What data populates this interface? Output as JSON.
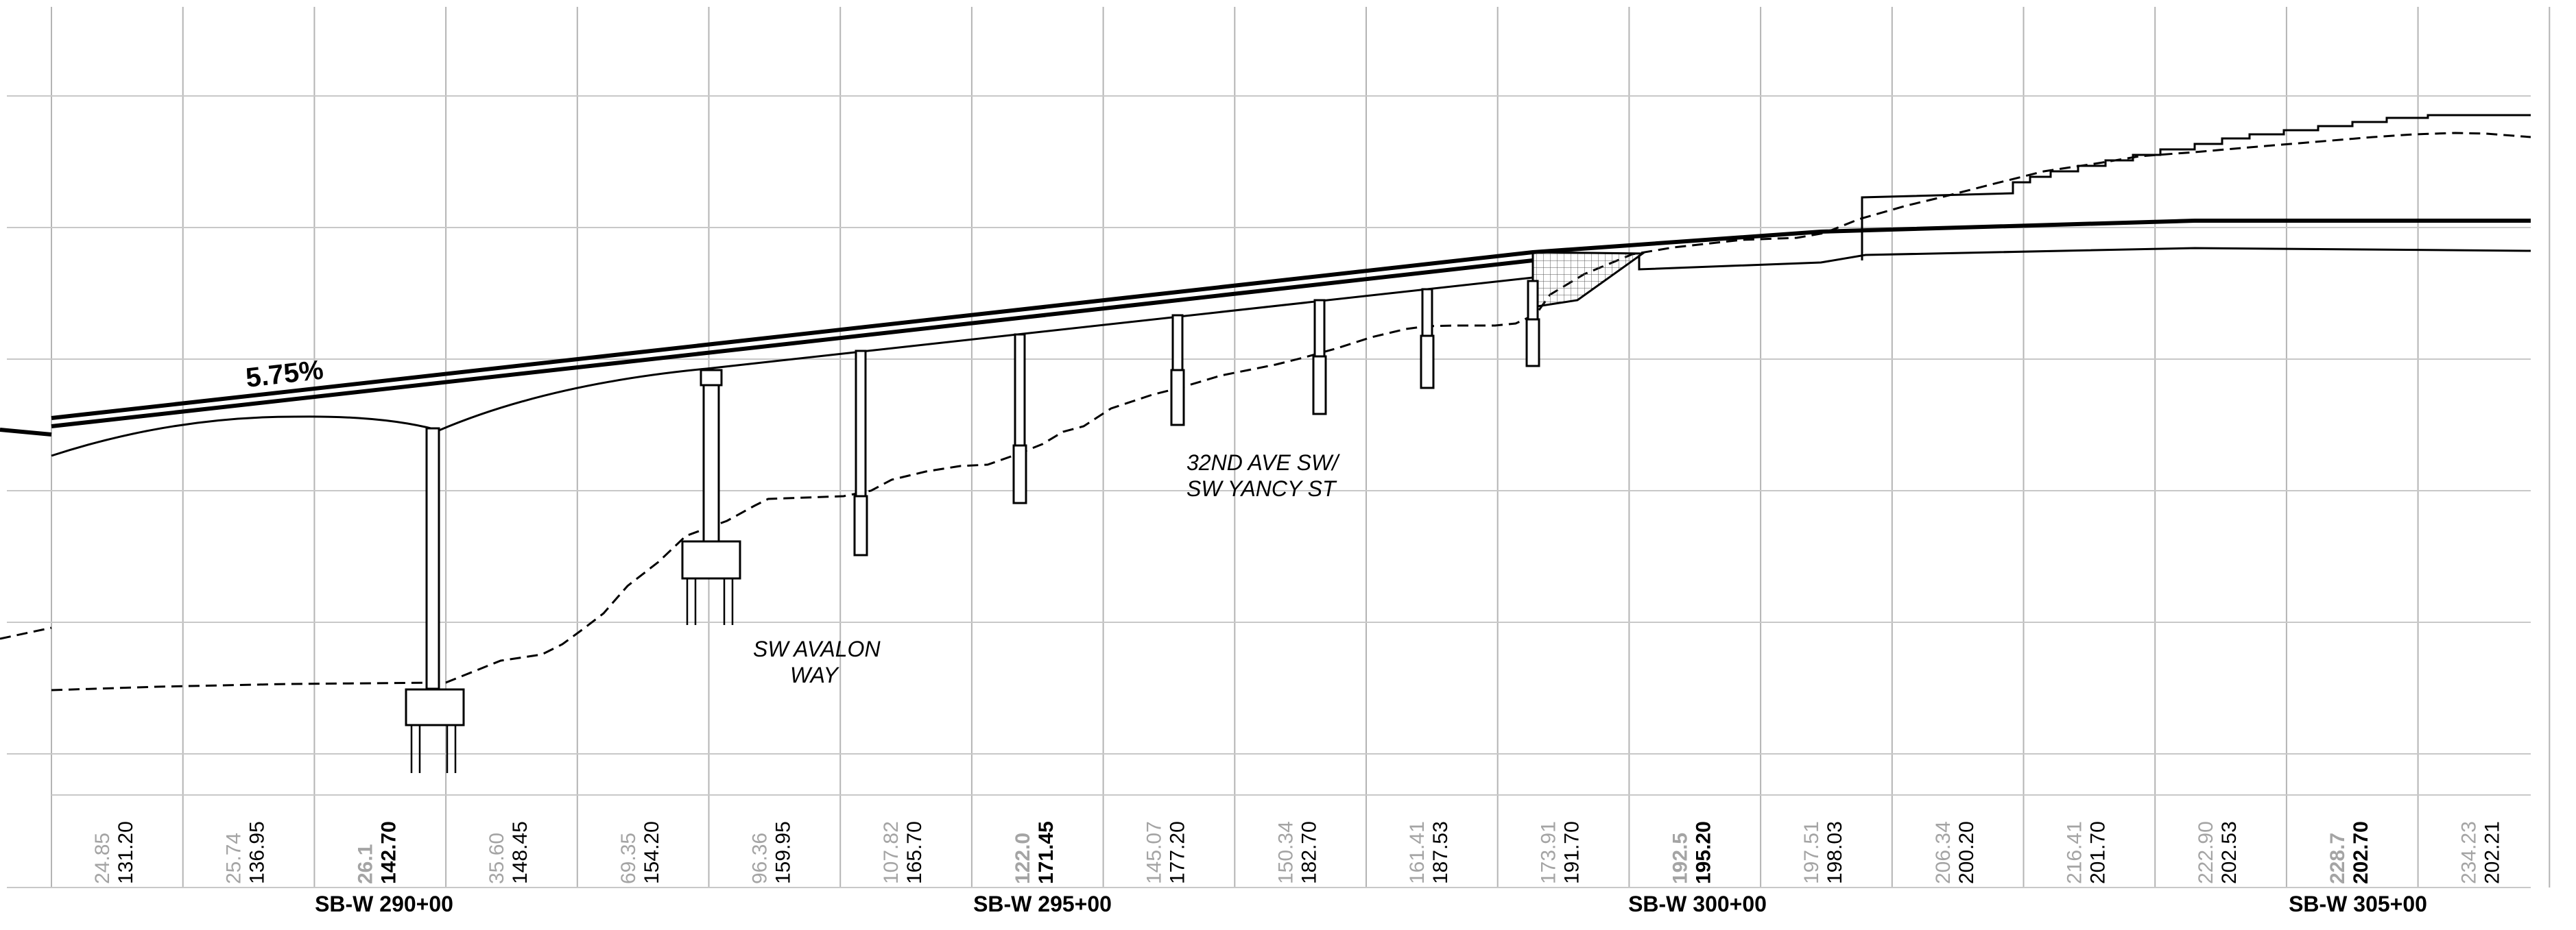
{
  "grade_label": "5.75%",
  "road_labels": {
    "avalon_line1": "SW AVALON",
    "avalon_line2": "WAY",
    "yancy_line1": "32ND AVE SW/",
    "yancy_line2": "SW YANCY ST"
  },
  "stations": [
    "SB-W 290+00",
    "SB-W 295+00",
    "SB-W 300+00",
    "SB-W 305+00"
  ],
  "bottom_values": [
    {
      "grey": "24.85",
      "black": "131.20",
      "bold": false
    },
    {
      "grey": "25.74",
      "black": "136.95",
      "bold": false
    },
    {
      "grey": "26.1",
      "black": "142.70",
      "bold": true
    },
    {
      "grey": "35.60",
      "black": "148.45",
      "bold": false
    },
    {
      "grey": "69.35",
      "black": "154.20",
      "bold": false
    },
    {
      "grey": "96.36",
      "black": "159.95",
      "bold": false
    },
    {
      "grey": "107.82",
      "black": "165.70",
      "bold": false
    },
    {
      "grey": "122.0",
      "black": "171.45",
      "bold": true
    },
    {
      "grey": "145.07",
      "black": "177.20",
      "bold": false
    },
    {
      "grey": "150.34",
      "black": "182.70",
      "bold": false
    },
    {
      "grey": "161.41",
      "black": "187.53",
      "bold": false
    },
    {
      "grey": "173.91",
      "black": "191.70",
      "bold": false
    },
    {
      "grey": "192.5",
      "black": "195.20",
      "bold": true
    },
    {
      "grey": "197.51",
      "black": "198.03",
      "bold": false
    },
    {
      "grey": "206.34",
      "black": "200.20",
      "bold": false
    },
    {
      "grey": "216.41",
      "black": "201.70",
      "bold": false
    },
    {
      "grey": "222.90",
      "black": "202.53",
      "bold": false
    },
    {
      "grey": "228.7",
      "black": "202.70",
      "bold": true
    },
    {
      "grey": "234.23",
      "black": "202.21",
      "bold": false
    }
  ]
}
